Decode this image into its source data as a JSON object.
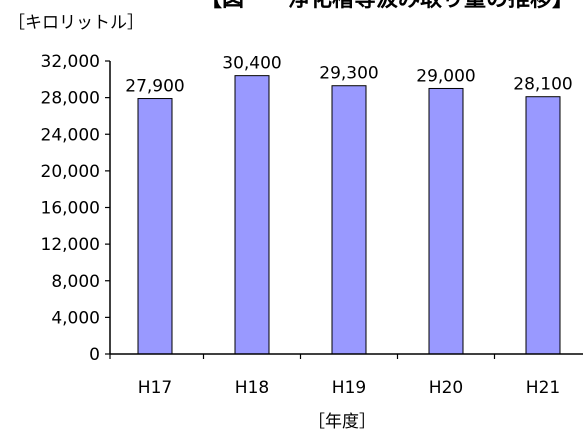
{
  "chart_data": {
    "type": "bar",
    "title": "【図　　浄化槽等汲み取り量の推移】",
    "xlabel": "［年度］",
    "ylabel": "［キロリットル］",
    "categories": [
      "H17",
      "H18",
      "H19",
      "H20",
      "H21"
    ],
    "series": [
      {
        "values": [
          27900,
          30400,
          29300,
          29000,
          28100
        ],
        "value_labels": [
          "27,900",
          "30,400",
          "29,300",
          "29,000",
          "28,100"
        ]
      }
    ],
    "y_ticks": [
      "0",
      "4,000",
      "8,000",
      "12,000",
      "16,000",
      "20,000",
      "24,000",
      "28,000",
      "32,000"
    ],
    "y_tick_values": [
      0,
      4000,
      8000,
      12000,
      16000,
      20000,
      24000,
      28000,
      32000
    ],
    "ylim": [
      0,
      32000
    ],
    "grid": false,
    "legend": "none",
    "colors": {
      "bar_fill": "#9999ff",
      "bar_stroke": "#000000",
      "axis": "#000000"
    }
  }
}
